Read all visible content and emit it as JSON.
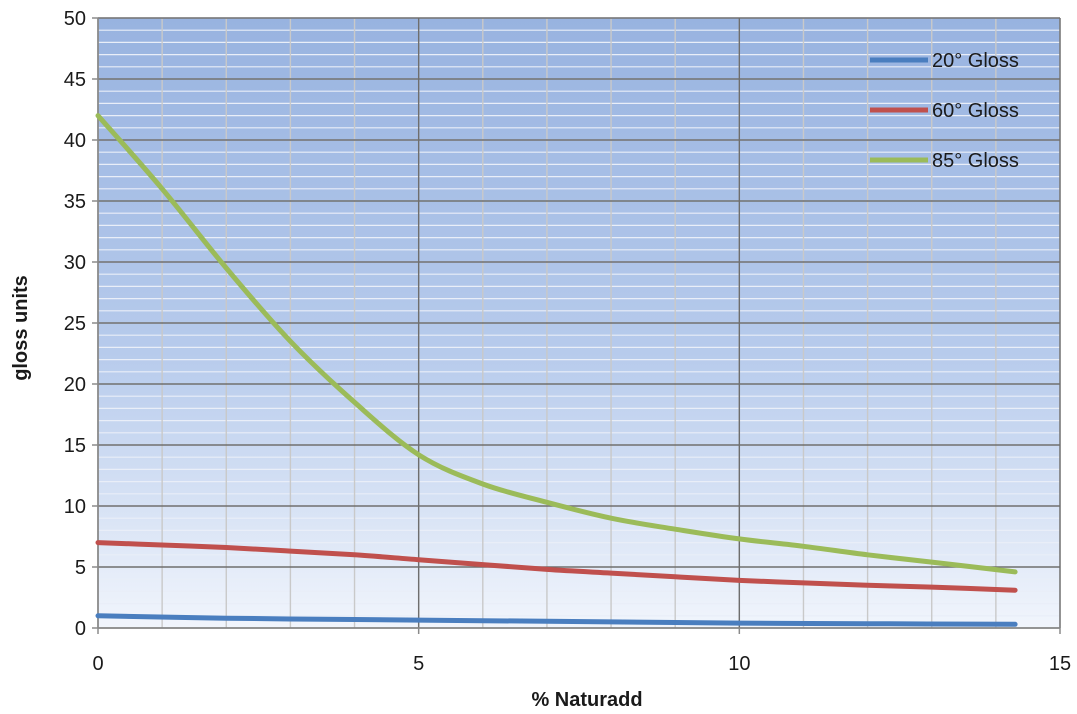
{
  "chart_data": {
    "type": "line",
    "title": "",
    "xlabel": "% Naturadd",
    "ylabel": "gloss units",
    "xlim": [
      0,
      15
    ],
    "ylim": [
      0,
      50
    ],
    "x_ticks": [
      0,
      5,
      10,
      15
    ],
    "y_ticks": [
      0,
      5,
      10,
      15,
      20,
      25,
      30,
      35,
      40,
      45,
      50
    ],
    "grid": true,
    "legend": "top-right",
    "background": "blue-gradient",
    "series": [
      {
        "name": "20° Gloss",
        "color": "#4a7ebf",
        "x": [
          0,
          2,
          4,
          6,
          8,
          10,
          12,
          14.3
        ],
        "y": [
          1.0,
          0.8,
          0.7,
          0.6,
          0.5,
          0.4,
          0.35,
          0.3
        ]
      },
      {
        "name": "60° Gloss",
        "color": "#c0504d",
        "x": [
          0,
          1,
          2,
          3,
          4,
          5,
          6,
          7,
          8,
          9,
          10,
          11,
          12,
          13,
          14.3
        ],
        "y": [
          7.0,
          6.8,
          6.6,
          6.3,
          6.0,
          5.6,
          5.2,
          4.8,
          4.5,
          4.2,
          3.9,
          3.7,
          3.5,
          3.35,
          3.1
        ]
      },
      {
        "name": "85° Gloss",
        "color": "#9bbb59",
        "x": [
          0,
          1,
          2,
          3,
          4,
          5,
          6,
          7,
          8,
          9,
          10,
          11,
          12,
          13,
          14.3
        ],
        "y": [
          42.0,
          36.0,
          29.5,
          23.5,
          18.5,
          14.2,
          11.8,
          10.3,
          9.0,
          8.1,
          7.3,
          6.7,
          6.0,
          5.4,
          4.6
        ]
      }
    ]
  }
}
